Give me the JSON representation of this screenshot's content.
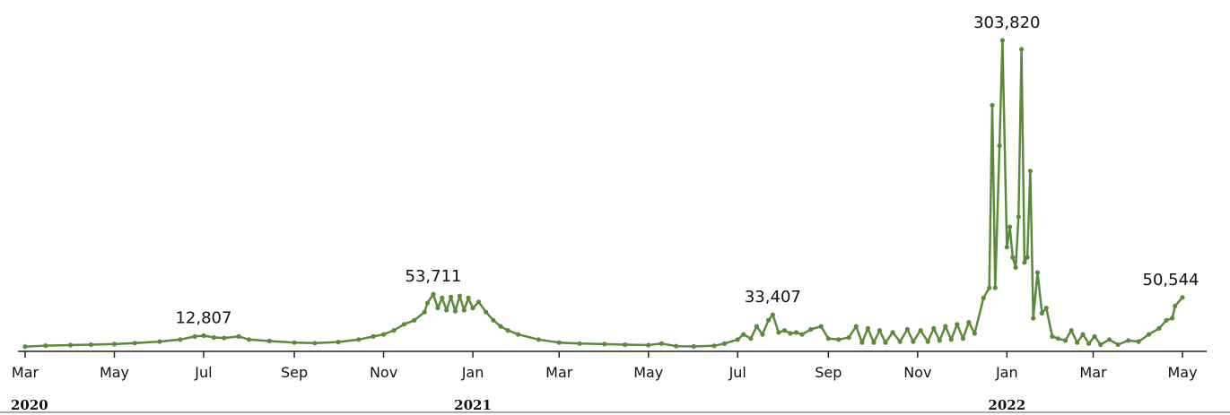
{
  "chart_data": {
    "type": "line",
    "title": "",
    "xlabel": "",
    "ylabel": "",
    "x_tick_labels": [
      "Mar",
      "May",
      "Jul",
      "Sep",
      "Nov",
      "Jan",
      "Mar",
      "May",
      "Jul",
      "Sep",
      "Nov",
      "Jan",
      "Mar",
      "May"
    ],
    "x_tick_dates": [
      "2020-03-01",
      "2020-05-01",
      "2020-07-01",
      "2020-09-01",
      "2020-11-01",
      "2021-01-01",
      "2021-03-01",
      "2021-05-01",
      "2021-07-01",
      "2021-09-01",
      "2021-11-01",
      "2022-01-01",
      "2022-03-01",
      "2022-05-01"
    ],
    "year_labels": [
      {
        "label": "2020",
        "date": "2020-03-01"
      },
      {
        "label": "2021",
        "date": "2021-01-01"
      },
      {
        "label": "2022",
        "date": "2022-01-01"
      }
    ],
    "xlim": [
      "2020-03-01",
      "2022-05-01"
    ],
    "ylim": [
      0,
      310000
    ],
    "grid": false,
    "line_color": "#5a8a3a",
    "annotations": [
      {
        "text": "12,807",
        "date": "2020-07-01",
        "value": 12807
      },
      {
        "text": "53,711",
        "date": "2020-12-05",
        "value": 53711
      },
      {
        "text": "33,407",
        "date": "2021-07-25",
        "value": 33407
      },
      {
        "text": "303,820",
        "date": "2022-01-01",
        "value": 303820
      },
      {
        "text": "50,544",
        "date": "2022-04-28",
        "value": 50544
      }
    ],
    "series": [
      {
        "values": [
          [
            "2020-03-01",
            2000
          ],
          [
            "2020-03-15",
            3000
          ],
          [
            "2020-04-01",
            3500
          ],
          [
            "2020-04-15",
            4000
          ],
          [
            "2020-05-01",
            4500
          ],
          [
            "2020-05-15",
            5500
          ],
          [
            "2020-06-01",
            7000
          ],
          [
            "2020-06-15",
            9000
          ],
          [
            "2020-06-25",
            12000
          ],
          [
            "2020-07-01",
            12807
          ],
          [
            "2020-07-08",
            11000
          ],
          [
            "2020-07-15",
            10500
          ],
          [
            "2020-07-25",
            12000
          ],
          [
            "2020-08-01",
            9000
          ],
          [
            "2020-08-15",
            7500
          ],
          [
            "2020-09-01",
            6000
          ],
          [
            "2020-09-15",
            5500
          ],
          [
            "2020-10-01",
            6500
          ],
          [
            "2020-10-15",
            9000
          ],
          [
            "2020-10-25",
            12000
          ],
          [
            "2020-11-01",
            14000
          ],
          [
            "2020-11-08",
            18000
          ],
          [
            "2020-11-15",
            24000
          ],
          [
            "2020-11-22",
            28000
          ],
          [
            "2020-11-29",
            36000
          ],
          [
            "2020-12-01",
            45000
          ],
          [
            "2020-12-05",
            53711
          ],
          [
            "2020-12-08",
            40000
          ],
          [
            "2020-12-11",
            50000
          ],
          [
            "2020-12-14",
            38000
          ],
          [
            "2020-12-17",
            51000
          ],
          [
            "2020-12-20",
            37000
          ],
          [
            "2020-12-23",
            52000
          ],
          [
            "2020-12-26",
            38000
          ],
          [
            "2020-12-29",
            50000
          ],
          [
            "2021-01-01",
            40000
          ],
          [
            "2021-01-05",
            46000
          ],
          [
            "2021-01-10",
            36000
          ],
          [
            "2021-01-15",
            28000
          ],
          [
            "2021-01-20",
            22000
          ],
          [
            "2021-01-25",
            18000
          ],
          [
            "2021-02-01",
            14000
          ],
          [
            "2021-02-15",
            9000
          ],
          [
            "2021-03-01",
            6000
          ],
          [
            "2021-03-15",
            5000
          ],
          [
            "2021-04-01",
            4500
          ],
          [
            "2021-04-15",
            4000
          ],
          [
            "2021-05-01",
            3500
          ],
          [
            "2021-05-10",
            5000
          ],
          [
            "2021-05-20",
            2500
          ],
          [
            "2021-06-01",
            2200
          ],
          [
            "2021-06-15",
            2800
          ],
          [
            "2021-06-22",
            5000
          ],
          [
            "2021-07-01",
            9000
          ],
          [
            "2021-07-05",
            14000
          ],
          [
            "2021-07-10",
            10000
          ],
          [
            "2021-07-14",
            22000
          ],
          [
            "2021-07-18",
            14000
          ],
          [
            "2021-07-22",
            28000
          ],
          [
            "2021-07-25",
            33407
          ],
          [
            "2021-07-29",
            16000
          ],
          [
            "2021-08-02",
            18000
          ],
          [
            "2021-08-06",
            15000
          ],
          [
            "2021-08-10",
            16000
          ],
          [
            "2021-08-14",
            14000
          ],
          [
            "2021-08-20",
            19000
          ],
          [
            "2021-08-27",
            22000
          ],
          [
            "2021-09-01",
            10000
          ],
          [
            "2021-09-08",
            9000
          ],
          [
            "2021-09-15",
            11000
          ],
          [
            "2021-09-20",
            22000
          ],
          [
            "2021-09-24",
            6000
          ],
          [
            "2021-09-28",
            20000
          ],
          [
            "2021-10-02",
            6000
          ],
          [
            "2021-10-06",
            18000
          ],
          [
            "2021-10-10",
            6000
          ],
          [
            "2021-10-15",
            16000
          ],
          [
            "2021-10-20",
            7000
          ],
          [
            "2021-10-25",
            19000
          ],
          [
            "2021-10-29",
            7000
          ],
          [
            "2021-11-03",
            18000
          ],
          [
            "2021-11-08",
            7000
          ],
          [
            "2021-11-12",
            20000
          ],
          [
            "2021-11-16",
            8000
          ],
          [
            "2021-11-20",
            22000
          ],
          [
            "2021-11-24",
            9000
          ],
          [
            "2021-11-28",
            24000
          ],
          [
            "2021-12-02",
            10000
          ],
          [
            "2021-12-06",
            26000
          ],
          [
            "2021-12-10",
            15000
          ],
          [
            "2021-12-16",
            50000
          ],
          [
            "2021-12-20",
            60000
          ],
          [
            "2021-12-22",
            240000
          ],
          [
            "2021-12-24",
            60000
          ],
          [
            "2021-12-27",
            200000
          ],
          [
            "2021-12-29",
            303820
          ],
          [
            "2022-01-01",
            100000
          ],
          [
            "2022-01-03",
            120000
          ],
          [
            "2022-01-05",
            90000
          ],
          [
            "2022-01-07",
            80000
          ],
          [
            "2022-01-09",
            130000
          ],
          [
            "2022-01-11",
            295000
          ],
          [
            "2022-01-13",
            85000
          ],
          [
            "2022-01-15",
            90000
          ],
          [
            "2022-01-17",
            175000
          ],
          [
            "2022-01-19",
            30000
          ],
          [
            "2022-01-22",
            75000
          ],
          [
            "2022-01-25",
            35000
          ],
          [
            "2022-01-28",
            40000
          ],
          [
            "2022-02-01",
            12000
          ],
          [
            "2022-02-05",
            10000
          ],
          [
            "2022-02-10",
            8000
          ],
          [
            "2022-02-14",
            18000
          ],
          [
            "2022-02-18",
            6000
          ],
          [
            "2022-02-22",
            14000
          ],
          [
            "2022-02-26",
            5000
          ],
          [
            "2022-03-02",
            12000
          ],
          [
            "2022-03-06",
            4000
          ],
          [
            "2022-03-12",
            9000
          ],
          [
            "2022-03-18",
            4000
          ],
          [
            "2022-03-25",
            8000
          ],
          [
            "2022-04-01",
            7000
          ],
          [
            "2022-04-08",
            14000
          ],
          [
            "2022-04-15",
            20000
          ],
          [
            "2022-04-20",
            28000
          ],
          [
            "2022-04-24",
            30000
          ],
          [
            "2022-04-26",
            42000
          ],
          [
            "2022-05-01",
            50544
          ]
        ]
      }
    ]
  }
}
